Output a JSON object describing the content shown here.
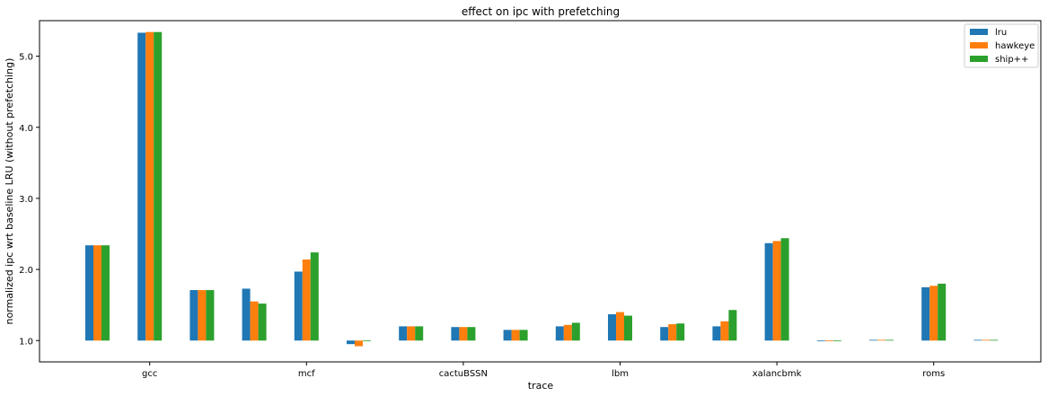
{
  "chart_data": {
    "type": "bar",
    "title": "effect on ipc with prefetching",
    "xlabel": "trace",
    "ylabel": "normalized ipc wrt baseline LRU (without prefetching)",
    "ylim": [
      0.7,
      5.5
    ],
    "baseline": 1.0,
    "yticks": [
      1.0,
      2.0,
      3.0,
      4.0,
      5.0
    ],
    "ytick_labels": [
      "1.0",
      "2.0",
      "3.0",
      "4.0",
      "5.0"
    ],
    "categories": [
      "gcc",
      "",
      "",
      "mcf",
      "",
      "",
      "cactuBSSN",
      "",
      "",
      "lbm",
      "",
      "",
      "xalancbmk",
      "",
      "",
      "roms",
      "",
      ""
    ],
    "visible_xtick_labels": [
      {
        "index": 1,
        "label": "gcc"
      },
      {
        "index": 4,
        "label": "mcf"
      },
      {
        "index": 7,
        "label": "cactuBSSN"
      },
      {
        "index": 10,
        "label": "lbm"
      },
      {
        "index": 13,
        "label": "xalancbmk"
      },
      {
        "index": 16,
        "label": "roms"
      }
    ],
    "grid": false,
    "legend_position": "top-right",
    "series": [
      {
        "name": "lru",
        "color": "#1f77b4",
        "values": [
          2.34,
          5.33,
          1.71,
          1.73,
          1.97,
          0.95,
          1.2,
          1.19,
          1.15,
          1.2,
          1.37,
          1.19,
          1.2,
          2.37,
          0.99,
          1.01,
          1.75,
          1.01
        ]
      },
      {
        "name": "hawkeye",
        "color": "#ff7f0e",
        "values": [
          2.34,
          5.34,
          1.71,
          1.55,
          2.14,
          0.92,
          1.2,
          1.19,
          1.15,
          1.22,
          1.4,
          1.23,
          1.27,
          2.4,
          0.99,
          1.01,
          1.77,
          1.01
        ]
      },
      {
        "name": "ship++",
        "color": "#2ca02c",
        "values": [
          2.34,
          5.34,
          1.71,
          1.52,
          2.24,
          1.0,
          1.2,
          1.19,
          1.15,
          1.25,
          1.35,
          1.24,
          1.43,
          2.44,
          0.99,
          1.01,
          1.8,
          1.01
        ]
      }
    ]
  }
}
